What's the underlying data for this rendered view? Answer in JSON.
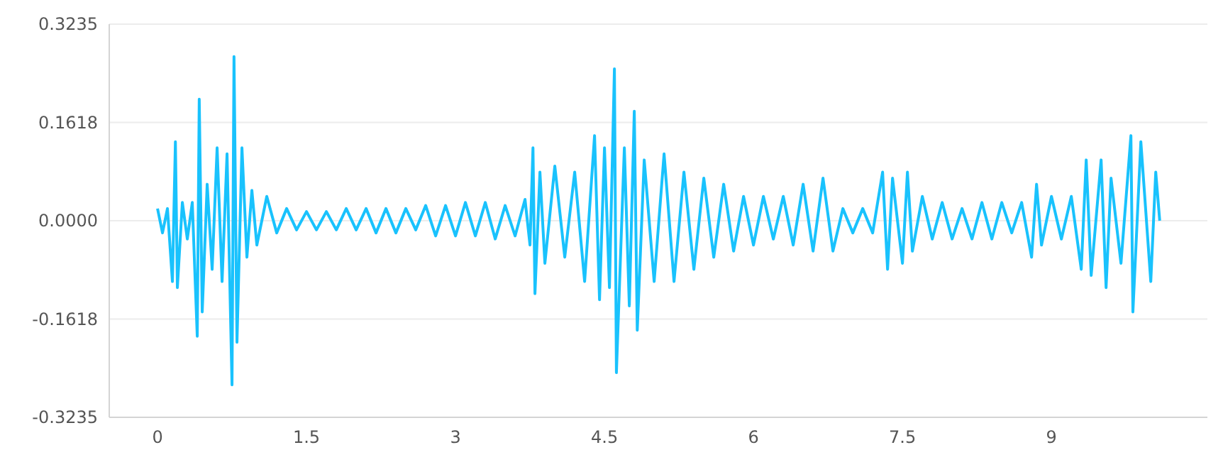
{
  "chart_data": {
    "type": "line",
    "xlim": [
      -0.486,
      10.57
    ],
    "ylim": [
      -0.3235,
      0.3235
    ],
    "xticks": [
      0,
      1.5,
      3,
      4.5,
      6,
      7.5,
      9
    ],
    "yticks": [
      {
        "value": -0.3235,
        "label": "-0.3235"
      },
      {
        "value": -0.1618,
        "label": "-0.1618"
      },
      {
        "value": 0,
        "label": "0.0000"
      },
      {
        "value": 0.1618,
        "label": "0.1618"
      },
      {
        "value": 0.3235,
        "label": "0.3235"
      }
    ],
    "grid": "y",
    "marker": "none",
    "line_style": "solid",
    "x": [
      0,
      0.05,
      0.1,
      0.15,
      0.18,
      0.2,
      0.25,
      0.3,
      0.35,
      0.4,
      0.42,
      0.45,
      0.5,
      0.55,
      0.6,
      0.65,
      0.7,
      0.75,
      0.77,
      0.8,
      0.85,
      0.9,
      0.95,
      1.0,
      1.1,
      1.2,
      1.3,
      1.4,
      1.5,
      1.6,
      1.7,
      1.8,
      1.9,
      2.0,
      2.1,
      2.2,
      2.3,
      2.4,
      2.5,
      2.6,
      2.7,
      2.8,
      2.9,
      3.0,
      3.1,
      3.2,
      3.3,
      3.4,
      3.5,
      3.6,
      3.7,
      3.75,
      3.78,
      3.8,
      3.85,
      3.9,
      4.0,
      4.1,
      4.2,
      4.3,
      4.4,
      4.45,
      4.5,
      4.55,
      4.6,
      4.62,
      4.7,
      4.75,
      4.8,
      4.83,
      4.9,
      5.0,
      5.1,
      5.2,
      5.3,
      5.4,
      5.5,
      5.6,
      5.7,
      5.8,
      5.9,
      6.0,
      6.1,
      6.2,
      6.3,
      6.4,
      6.5,
      6.6,
      6.7,
      6.8,
      6.9,
      7.0,
      7.1,
      7.2,
      7.3,
      7.35,
      7.4,
      7.5,
      7.55,
      7.6,
      7.7,
      7.8,
      7.9,
      8.0,
      8.1,
      8.2,
      8.3,
      8.4,
      8.5,
      8.6,
      8.7,
      8.8,
      8.85,
      8.9,
      9.0,
      9.1,
      9.2,
      9.3,
      9.35,
      9.4,
      9.5,
      9.55,
      9.6,
      9.7,
      9.8,
      9.82,
      9.9,
      10.0,
      10.05,
      10.09
    ],
    "series": [
      {
        "color": "#19c2fd",
        "values": [
          0.02,
          -0.02,
          0.02,
          -0.1,
          0.13,
          -0.11,
          0.03,
          -0.03,
          0.03,
          -0.19,
          0.2,
          -0.15,
          0.06,
          -0.08,
          0.12,
          -0.1,
          0.11,
          -0.27,
          0.27,
          -0.2,
          0.12,
          -0.06,
          0.05,
          -0.04,
          0.04,
          -0.02,
          0.02,
          -0.015,
          0.015,
          -0.015,
          0.015,
          -0.015,
          0.02,
          -0.015,
          0.02,
          -0.02,
          0.02,
          -0.02,
          0.02,
          -0.015,
          0.025,
          -0.025,
          0.025,
          -0.025,
          0.03,
          -0.025,
          0.03,
          -0.03,
          0.025,
          -0.025,
          0.035,
          -0.04,
          0.12,
          -0.12,
          0.08,
          -0.07,
          0.09,
          -0.06,
          0.08,
          -0.1,
          0.14,
          -0.13,
          0.12,
          -0.11,
          0.25,
          -0.25,
          0.12,
          -0.14,
          0.18,
          -0.18,
          0.1,
          -0.1,
          0.11,
          -0.1,
          0.08,
          -0.08,
          0.07,
          -0.06,
          0.06,
          -0.05,
          0.04,
          -0.04,
          0.04,
          -0.03,
          0.04,
          -0.04,
          0.06,
          -0.05,
          0.07,
          -0.05,
          0.02,
          -0.02,
          0.02,
          -0.02,
          0.08,
          -0.08,
          0.07,
          -0.07,
          0.08,
          -0.05,
          0.04,
          -0.03,
          0.03,
          -0.03,
          0.02,
          -0.03,
          0.03,
          -0.03,
          0.03,
          -0.02,
          0.03,
          -0.06,
          0.06,
          -0.04,
          0.04,
          -0.03,
          0.04,
          -0.08,
          0.1,
          -0.09,
          0.1,
          -0.11,
          0.07,
          -0.07,
          0.14,
          -0.15,
          0.13,
          -0.1,
          0.08,
          0
        ]
      }
    ]
  }
}
